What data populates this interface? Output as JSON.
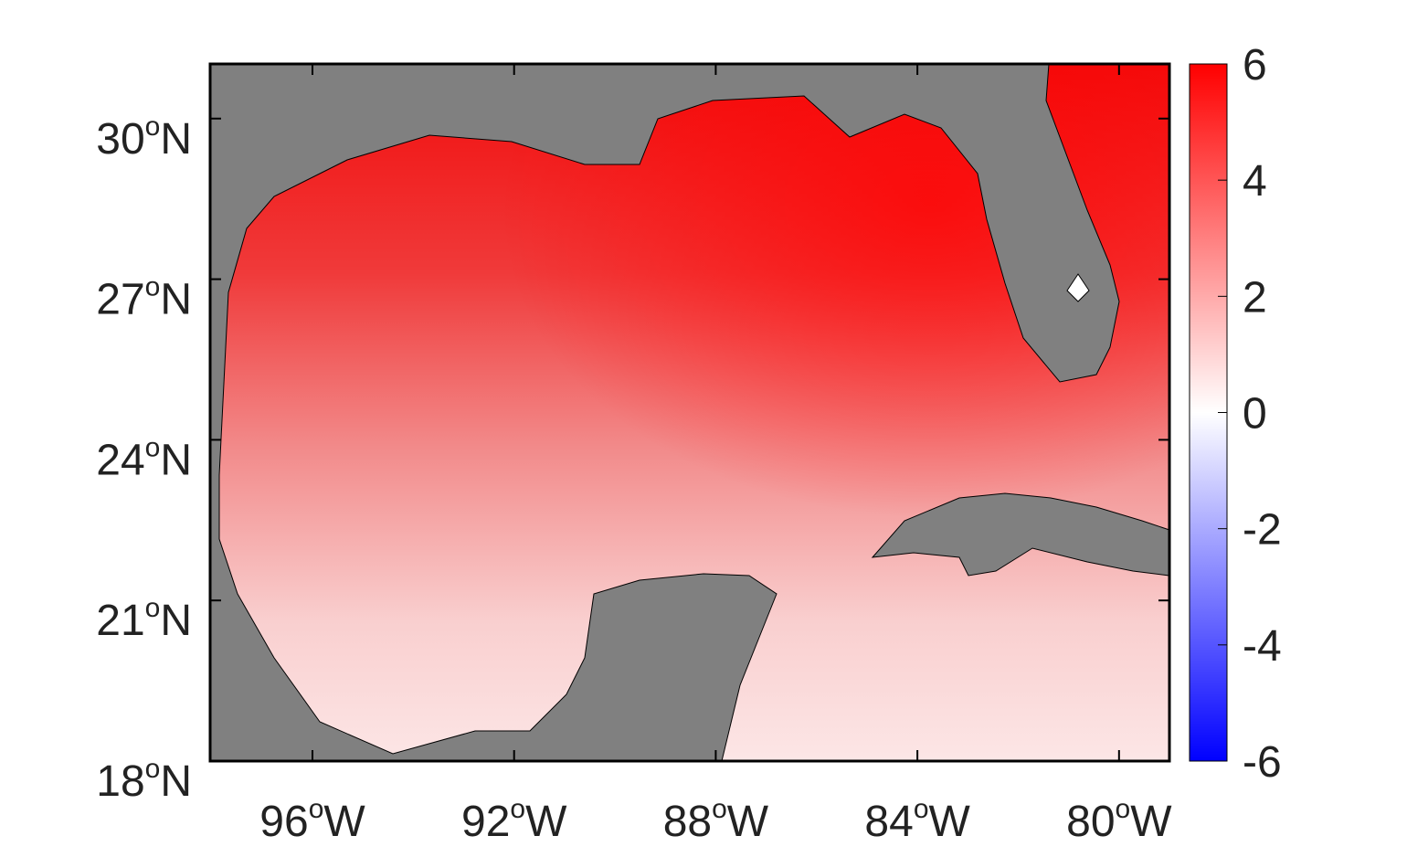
{
  "chart_data": {
    "type": "map",
    "xlim": [
      -98.03,
      -79.0
    ],
    "ylim": [
      18,
      31.02
    ],
    "xticks": [
      {
        "value": -96,
        "label": "96",
        "sup": "o",
        "suffix": "W"
      },
      {
        "value": -92,
        "label": "92",
        "sup": "o",
        "suffix": "W"
      },
      {
        "value": -88,
        "label": "88",
        "sup": "o",
        "suffix": "W"
      },
      {
        "value": -84,
        "label": "84",
        "sup": "o",
        "suffix": "W"
      },
      {
        "value": -80,
        "label": "80",
        "sup": "o",
        "suffix": "W"
      }
    ],
    "yticks": [
      {
        "value": 18,
        "label": "18",
        "sup": "o",
        "suffix": "N"
      },
      {
        "value": 21,
        "label": "21",
        "sup": "o",
        "suffix": "N"
      },
      {
        "value": 24,
        "label": "24",
        "sup": "o",
        "suffix": "N"
      },
      {
        "value": 27,
        "label": "27",
        "sup": "o",
        "suffix": "N"
      },
      {
        "value": 30,
        "label": "30",
        "sup": "o",
        "suffix": "N"
      }
    ],
    "land_color": "#808080",
    "colorbar": {
      "lim": [
        -6,
        6
      ],
      "ticks": [
        -6,
        -4,
        -2,
        0,
        2,
        4,
        6
      ],
      "colors": [
        "#0000ff",
        "#ffffff",
        "#ff0000"
      ]
    }
  }
}
